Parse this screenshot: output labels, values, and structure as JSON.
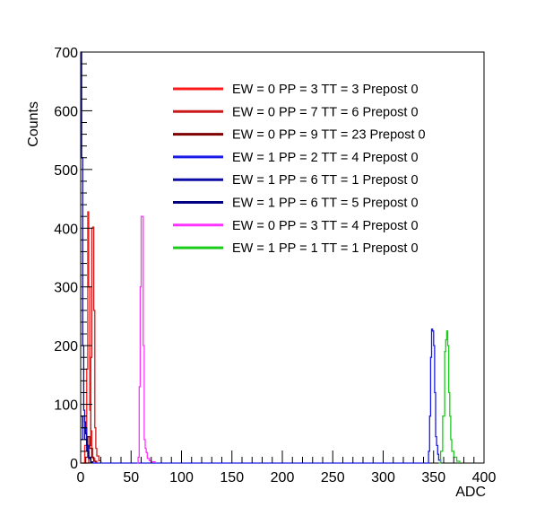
{
  "chart_data": {
    "type": "line",
    "title": "",
    "xlabel": "ADC",
    "ylabel": "Counts",
    "xlim": [
      0,
      400
    ],
    "ylim": [
      0,
      700
    ],
    "x_ticks": [
      0,
      50,
      100,
      150,
      200,
      250,
      300,
      350,
      400
    ],
    "y_ticks": [
      0,
      100,
      200,
      300,
      400,
      500,
      600,
      700
    ],
    "grid": false,
    "legend_position": "top-right",
    "series": [
      {
        "name": "EW = 0 PP = 3 TT = 3 Prepost 0",
        "color": "#ff1a1a",
        "points": [
          [
            0,
            0
          ],
          [
            4,
            30
          ],
          [
            6,
            160
          ],
          [
            7,
            428
          ],
          [
            8,
            300
          ],
          [
            9,
            90
          ],
          [
            10,
            55
          ],
          [
            11,
            25
          ],
          [
            12,
            8
          ],
          [
            14,
            3
          ],
          [
            16,
            0
          ]
        ]
      },
      {
        "name": "EW = 0 PP = 7 TT = 6 Prepost 0",
        "color": "#cc1a1a",
        "points": [
          [
            5,
            0
          ],
          [
            8,
            30
          ],
          [
            10,
            180
          ],
          [
            11,
            400
          ],
          [
            12,
            402
          ],
          [
            13,
            260
          ],
          [
            14,
            60
          ],
          [
            15,
            25
          ],
          [
            16,
            12
          ],
          [
            18,
            4
          ],
          [
            20,
            0
          ]
        ]
      },
      {
        "name": "EW = 0 PP = 9 TT = 23 Prepost 0",
        "color": "#800000",
        "points": [
          [
            3,
            0
          ],
          [
            5,
            10
          ],
          [
            7,
            45
          ],
          [
            9,
            25
          ],
          [
            11,
            10
          ],
          [
            13,
            3
          ],
          [
            15,
            0
          ]
        ]
      },
      {
        "name": "EW = 1 PP = 2 TT = 4 Prepost 0",
        "color": "#1a1ae6",
        "points": [
          [
            0,
            40
          ],
          [
            2,
            80
          ],
          [
            4,
            60
          ],
          [
            6,
            30
          ],
          [
            8,
            10
          ],
          [
            10,
            2
          ],
          [
            12,
            0
          ],
          [
            344,
            0
          ],
          [
            345,
            20
          ],
          [
            346,
            80
          ],
          [
            347,
            180
          ],
          [
            348,
            228
          ],
          [
            349,
            225
          ],
          [
            350,
            200
          ],
          [
            351,
            120
          ],
          [
            352,
            45
          ],
          [
            353,
            30
          ],
          [
            354,
            15
          ],
          [
            355,
            5
          ],
          [
            357,
            0
          ]
        ]
      },
      {
        "name": "EW = 1 PP = 6 TT = 1 Prepost 0",
        "color": "#0d0da6",
        "points": [
          [
            0,
            700
          ],
          [
            1,
            520
          ],
          [
            2,
            200
          ],
          [
            3,
            90
          ],
          [
            4,
            70
          ],
          [
            5,
            50
          ],
          [
            6,
            30
          ],
          [
            7,
            20
          ],
          [
            8,
            8
          ],
          [
            10,
            0
          ]
        ]
      },
      {
        "name": "EW = 1 PP = 6 TT = 5 Prepost 0",
        "color": "#000080",
        "points": [
          [
            0,
            80
          ],
          [
            2,
            60
          ],
          [
            4,
            40
          ],
          [
            6,
            20
          ],
          [
            8,
            8
          ],
          [
            10,
            2
          ],
          [
            12,
            0
          ]
        ]
      },
      {
        "name": "EW = 0 PP = 3 TT = 4 Prepost 0",
        "color": "#ff33ff",
        "points": [
          [
            56,
            0
          ],
          [
            57,
            10
          ],
          [
            58,
            130
          ],
          [
            59,
            300
          ],
          [
            60,
            420
          ],
          [
            61,
            420
          ],
          [
            62,
            200
          ],
          [
            63,
            40
          ],
          [
            64,
            25
          ],
          [
            65,
            18
          ],
          [
            66,
            8
          ],
          [
            68,
            4
          ],
          [
            70,
            2
          ],
          [
            74,
            0
          ]
        ]
      },
      {
        "name": "EW = 1 PP = 1 TT = 1 Prepost 0",
        "color": "#1acc1a",
        "points": [
          [
            355,
            0
          ],
          [
            357,
            20
          ],
          [
            359,
            80
          ],
          [
            361,
            190
          ],
          [
            362,
            210
          ],
          [
            363,
            225
          ],
          [
            364,
            200
          ],
          [
            365,
            120
          ],
          [
            366,
            80
          ],
          [
            367,
            40
          ],
          [
            368,
            20
          ],
          [
            370,
            10
          ],
          [
            373,
            3
          ],
          [
            376,
            0
          ]
        ]
      }
    ]
  }
}
